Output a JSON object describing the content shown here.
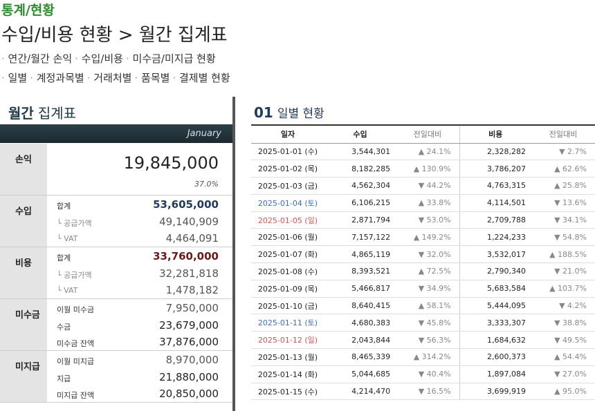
{
  "header": {
    "breadcrumb": "통계/현황",
    "title": "수입/비용 현황 > 월간 집계표",
    "links": [
      [
        "연간/월간 손익",
        "수입/비용",
        "미수금/미지급 현황"
      ],
      [
        "일별",
        "계정과목별",
        "거래처별",
        "품목별",
        "결제별 현황"
      ]
    ]
  },
  "summary": {
    "title_bold": "월간",
    "title_rest": "집계표",
    "month": "January",
    "profit": {
      "label": "손익",
      "value": "19,845,000",
      "rate": "37.0%"
    },
    "sections": [
      {
        "label": "수입",
        "rows": [
          [
            "합계",
            "53,605,000"
          ],
          [
            "└ 공급가액",
            "49,140,909"
          ],
          [
            "└ VAT",
            "4,464,091"
          ]
        ]
      },
      {
        "label": "비용",
        "rows": [
          [
            "합계",
            "33,760,000"
          ],
          [
            "└ 공급가액",
            "32,281,818"
          ],
          [
            "└ VAT",
            "1,478,182"
          ]
        ]
      },
      {
        "label": "미수금",
        "rows": [
          [
            "이월 미수금",
            "7,950,000"
          ],
          [
            "수금",
            "23,679,000"
          ],
          [
            "미수금 잔액",
            "37,876,000"
          ]
        ]
      },
      {
        "label": "미지급",
        "rows": [
          [
            "이월 미지급",
            "8,970,000"
          ],
          [
            "지급",
            "21,880,000"
          ],
          [
            "미지급 잔액",
            "20,850,000"
          ]
        ]
      }
    ]
  },
  "daily": {
    "number": "01",
    "title": "일별 현황",
    "columns": [
      "일자",
      "수입",
      "전일대비",
      "비용",
      "전일대비"
    ],
    "rows": [
      [
        "2025-01-01 (수)",
        "3,544,301",
        "▲ 24.1%",
        "2,328,282",
        "▼ 2.7%"
      ],
      [
        "2025-01-02 (목)",
        "8,182,285",
        "▲ 130.9%",
        "3,786,207",
        "▲ 62.6%"
      ],
      [
        "2025-01-03 (금)",
        "4,562,304",
        "▼ 44.2%",
        "4,763,315",
        "▲ 25.8%"
      ],
      [
        "2025-01-04 (토)",
        "6,106,215",
        "▲ 33.8%",
        "4,114,501",
        "▼ 13.6%"
      ],
      [
        "2025-01-05 (일)",
        "2,871,794",
        "▼ 53.0%",
        "2,709,788",
        "▼ 34.1%"
      ],
      [
        "2025-01-06 (월)",
        "7,157,122",
        "▲ 149.2%",
        "1,224,233",
        "▼ 54.8%"
      ],
      [
        "2025-01-07 (화)",
        "4,865,119",
        "▼ 32.0%",
        "3,532,017",
        "▲ 188.5%"
      ],
      [
        "2025-01-08 (수)",
        "8,393,521",
        "▲ 72.5%",
        "2,790,340",
        "▼ 21.0%"
      ],
      [
        "2025-01-09 (목)",
        "5,466,817",
        "▼ 34.9%",
        "5,683,584",
        "▲ 103.7%"
      ],
      [
        "2025-01-10 (금)",
        "8,640,415",
        "▲ 58.1%",
        "5,444,095",
        "▼ 4.2%"
      ],
      [
        "2025-01-11 (토)",
        "4,680,383",
        "▼ 45.8%",
        "3,333,307",
        "▼ 38.8%"
      ],
      [
        "2025-01-12 (일)",
        "2,043,844",
        "▼ 56.3%",
        "1,684,632",
        "▼ 49.5%"
      ],
      [
        "2025-01-13 (월)",
        "8,465,339",
        "▲ 314.2%",
        "2,600,373",
        "▲ 54.4%"
      ],
      [
        "2025-01-14 (화)",
        "5,044,685",
        "▼ 40.4%",
        "1,897,084",
        "▼ 27.0%"
      ],
      [
        "2025-01-15 (수)",
        "4,214,470",
        "▼ 16.5%",
        "3,699,919",
        "▲ 95.0%"
      ]
    ]
  }
}
